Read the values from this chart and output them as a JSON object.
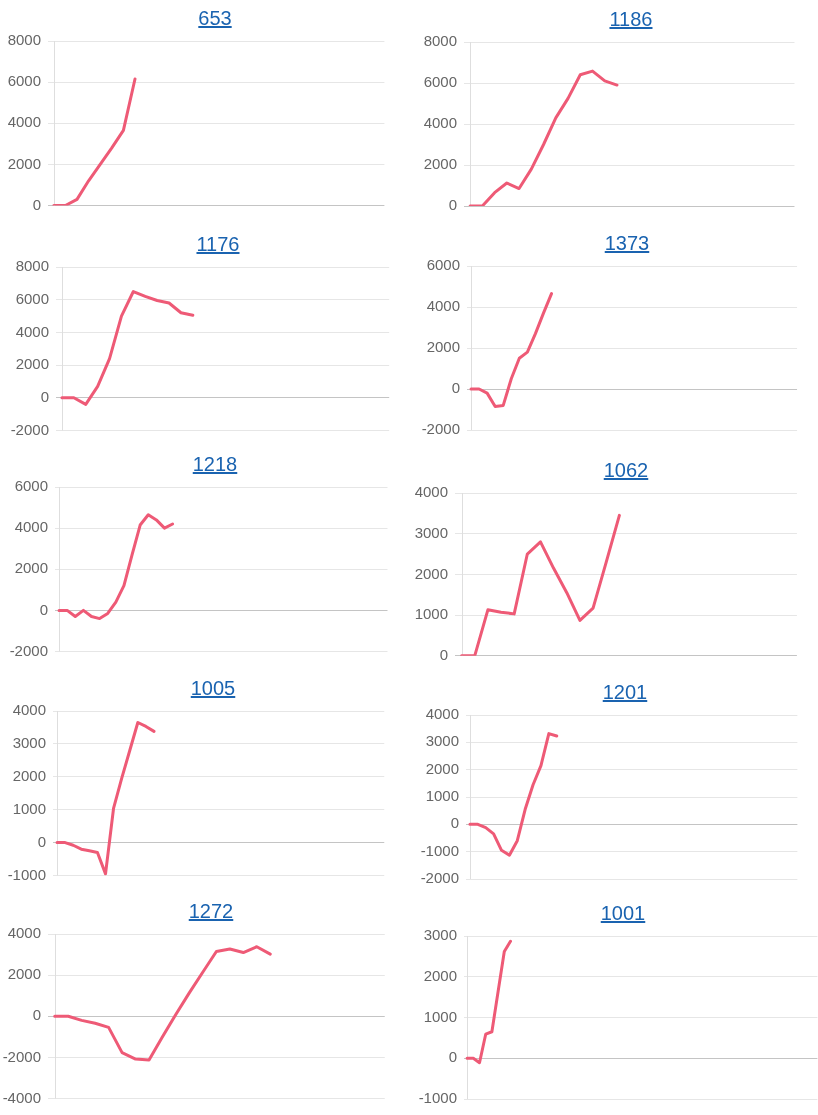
{
  "chart_data": [
    {
      "type": "line",
      "title": "653",
      "categories": [
        null,
        null,
        null,
        null,
        null,
        null,
        null,
        null,
        null,
        null,
        null,
        null,
        null,
        null,
        null,
        null,
        null,
        null,
        null,
        null,
        null,
        null,
        null,
        null,
        null,
        null,
        null,
        null,
        null
      ],
      "values": [
        0,
        0,
        300,
        1200,
        2000,
        2800,
        3650,
        6150,
        null,
        null,
        null,
        null,
        null,
        null,
        null,
        null,
        null,
        null,
        null,
        null,
        null,
        null,
        null,
        null,
        null,
        null,
        null,
        null,
        null
      ],
      "color": "#ee5a76",
      "ylim": [
        0,
        8000
      ],
      "yticks": [
        0,
        2000,
        4000,
        6000,
        8000
      ],
      "grid": "y",
      "marker": "none"
    },
    {
      "type": "line",
      "title": "1186",
      "categories": [
        null,
        null,
        null,
        null,
        null,
        null,
        null,
        null,
        null,
        null,
        null,
        null,
        null,
        null,
        null,
        null,
        null,
        null,
        null,
        null,
        null,
        null,
        null,
        null,
        null,
        null,
        null
      ],
      "values": [
        0,
        0,
        650,
        1120,
        850,
        1800,
        3000,
        4300,
        5250,
        6400,
        6580,
        6100,
        5900,
        null,
        null,
        null,
        null,
        null,
        null,
        null,
        null,
        null,
        null,
        null,
        null,
        null,
        null
      ],
      "color": "#ee5a76",
      "ylim": [
        0,
        8000
      ],
      "yticks": [
        0,
        2000,
        4000,
        6000,
        8000
      ],
      "grid": "y",
      "marker": "none"
    },
    {
      "type": "line",
      "title": "1176",
      "categories": [
        null,
        null,
        null,
        null,
        null,
        null,
        null,
        null,
        null,
        null,
        null,
        null,
        null,
        null,
        null,
        null,
        null,
        null,
        null,
        null,
        null,
        null,
        null,
        null,
        null,
        null,
        null,
        null
      ],
      "values": [
        0,
        0,
        -400,
        700,
        2400,
        5000,
        6500,
        6200,
        5950,
        5800,
        5200,
        5050,
        null,
        null,
        null,
        null,
        null,
        null,
        null,
        null,
        null,
        null,
        null,
        null,
        null,
        null,
        null,
        null
      ],
      "color": "#ee5a76",
      "ylim": [
        -2000,
        8000
      ],
      "yticks": [
        -2000,
        0,
        2000,
        4000,
        6000,
        8000
      ],
      "grid": "y",
      "marker": "none"
    },
    {
      "type": "line",
      "title": "1373",
      "categories": [
        null,
        null,
        null,
        null,
        null,
        null,
        null,
        null,
        null,
        null,
        null,
        null,
        null,
        null,
        null,
        null,
        null,
        null,
        null,
        null,
        null,
        null,
        null,
        null,
        null,
        null,
        null,
        null,
        null,
        null,
        null,
        null,
        null,
        null,
        null,
        null,
        null,
        null,
        null,
        null,
        null
      ],
      "values": [
        0,
        0,
        -200,
        -850,
        -800,
        500,
        1500,
        1800,
        2700,
        3700,
        4650,
        null,
        null,
        null,
        null,
        null,
        null,
        null,
        null,
        null,
        null,
        null,
        null,
        null,
        null,
        null,
        null,
        null,
        null,
        null,
        null,
        null,
        null,
        null,
        null,
        null,
        null,
        null,
        null,
        null,
        null
      ],
      "color": "#ee5a76",
      "ylim": [
        -2000,
        6000
      ],
      "yticks": [
        -2000,
        0,
        2000,
        4000,
        6000
      ],
      "grid": "y",
      "marker": "none"
    },
    {
      "type": "line",
      "title": "1218",
      "categories": [
        null,
        null,
        null,
        null,
        null,
        null,
        null,
        null,
        null,
        null,
        null,
        null,
        null,
        null,
        null,
        null,
        null,
        null,
        null,
        null,
        null,
        null,
        null,
        null,
        null,
        null,
        null,
        null,
        null,
        null,
        null,
        null,
        null,
        null,
        null,
        null,
        null,
        null,
        null,
        null,
        null
      ],
      "values": [
        0,
        0,
        -300,
        0,
        -300,
        -400,
        -150,
        400,
        1200,
        2700,
        4150,
        4650,
        4400,
        4000,
        4200,
        null,
        null,
        null,
        null,
        null,
        null,
        null,
        null,
        null,
        null,
        null,
        null,
        null,
        null,
        null,
        null,
        null,
        null,
        null,
        null,
        null,
        null,
        null,
        null,
        null,
        null
      ],
      "color": "#ee5a76",
      "ylim": [
        -2000,
        6000
      ],
      "yticks": [
        -2000,
        0,
        2000,
        4000,
        6000
      ],
      "grid": "y",
      "marker": "none"
    },
    {
      "type": "line",
      "title": "1062",
      "categories": [
        null,
        null,
        null,
        null,
        null,
        null,
        null,
        null,
        null,
        null,
        null,
        null,
        null,
        null,
        null,
        null,
        null,
        null,
        null,
        null,
        null,
        null,
        null,
        null,
        null,
        null
      ],
      "values": [
        0,
        0,
        1130,
        1070,
        1030,
        2500,
        2800,
        2150,
        1550,
        870,
        1170,
        2300,
        3450,
        null,
        null,
        null,
        null,
        null,
        null,
        null,
        null,
        null,
        null,
        null,
        null,
        null
      ],
      "color": "#ee5a76",
      "ylim": [
        0,
        4000
      ],
      "yticks": [
        0,
        1000,
        2000,
        3000,
        4000
      ],
      "grid": "y",
      "marker": "none"
    },
    {
      "type": "line",
      "title": "1005",
      "categories": [
        null,
        null,
        null,
        null,
        null,
        null,
        null,
        null,
        null,
        null,
        null,
        null,
        null,
        null,
        null,
        null,
        null,
        null,
        null,
        null,
        null,
        null,
        null,
        null,
        null,
        null,
        null,
        null,
        null,
        null,
        null,
        null,
        null,
        null,
        null,
        null,
        null,
        null,
        null,
        null,
        null
      ],
      "values": [
        0,
        0,
        -80,
        -200,
        -250,
        -300,
        -950,
        1050,
        1950,
        2800,
        3650,
        3530,
        3380,
        null,
        null,
        null,
        null,
        null,
        null,
        null,
        null,
        null,
        null,
        null,
        null,
        null,
        null,
        null,
        null,
        null,
        null,
        null,
        null,
        null,
        null,
        null,
        null,
        null,
        null,
        null,
        null
      ],
      "color": "#ee5a76",
      "ylim": [
        -1000,
        4000
      ],
      "yticks": [
        -1000,
        0,
        1000,
        2000,
        3000,
        4000
      ],
      "grid": "y",
      "marker": "none"
    },
    {
      "type": "line",
      "title": "1201",
      "categories": [
        null,
        null,
        null,
        null,
        null,
        null,
        null,
        null,
        null,
        null,
        null,
        null,
        null,
        null,
        null,
        null,
        null,
        null,
        null,
        null,
        null,
        null,
        null,
        null,
        null,
        null,
        null,
        null,
        null,
        null,
        null,
        null,
        null,
        null,
        null,
        null,
        null,
        null,
        null,
        null,
        null,
        null
      ],
      "values": [
        0,
        0,
        -120,
        -350,
        -950,
        -1130,
        -600,
        550,
        1450,
        2150,
        3320,
        3230,
        null,
        null,
        null,
        null,
        null,
        null,
        null,
        null,
        null,
        null,
        null,
        null,
        null,
        null,
        null,
        null,
        null,
        null,
        null,
        null,
        null,
        null,
        null,
        null,
        null,
        null,
        null,
        null,
        null,
        null
      ],
      "color": "#ee5a76",
      "ylim": [
        -2000,
        4000
      ],
      "yticks": [
        -2000,
        -1000,
        0,
        1000,
        2000,
        3000,
        4000
      ],
      "grid": "y",
      "marker": "none"
    },
    {
      "type": "line",
      "title": "1272",
      "categories": [
        null,
        null,
        null,
        null,
        null,
        null,
        null,
        null,
        null,
        null,
        null,
        null,
        null,
        null,
        null,
        null,
        null,
        null,
        null,
        null,
        null,
        null,
        null,
        null,
        null
      ],
      "values": [
        0,
        0,
        -200,
        -340,
        -540,
        -1770,
        -2080,
        -2130,
        -1000,
        100,
        1150,
        2150,
        3150,
        3270,
        3100,
        3380,
        3020,
        null,
        null,
        null,
        null,
        null,
        null,
        null,
        null
      ],
      "color": "#ee5a76",
      "ylim": [
        -4000,
        4000
      ],
      "yticks": [
        -4000,
        -2000,
        0,
        2000,
        4000
      ],
      "grid": "y",
      "marker": "none"
    },
    {
      "type": "line",
      "title": "1001",
      "categories": [
        null,
        null,
        null,
        null,
        null,
        null,
        null,
        null,
        null,
        null,
        null,
        null,
        null,
        null,
        null,
        null,
        null,
        null,
        null,
        null,
        null,
        null,
        null,
        null,
        null,
        null,
        null,
        null,
        null,
        null,
        null,
        null,
        null,
        null,
        null,
        null,
        null,
        null,
        null,
        null,
        null,
        null,
        null,
        null,
        null,
        null,
        null,
        null,
        null,
        null,
        null,
        null,
        null,
        null,
        null,
        null,
        null
      ],
      "values": [
        0,
        0,
        -110,
        590,
        650,
        1640,
        2620,
        2870,
        null,
        null,
        null,
        null,
        null,
        null,
        null,
        null,
        null,
        null,
        null,
        null,
        null,
        null,
        null,
        null,
        null,
        null,
        null,
        null,
        null,
        null,
        null,
        null,
        null,
        null,
        null,
        null,
        null,
        null,
        null,
        null,
        null,
        null,
        null,
        null,
        null,
        null,
        null,
        null,
        null,
        null,
        null,
        null,
        null,
        null,
        null,
        null,
        null
      ],
      "color": "#ee5a76",
      "ylim": [
        -1000,
        3000
      ],
      "yticks": [
        -1000,
        0,
        1000,
        2000,
        3000
      ],
      "grid": "y",
      "marker": "none"
    }
  ]
}
